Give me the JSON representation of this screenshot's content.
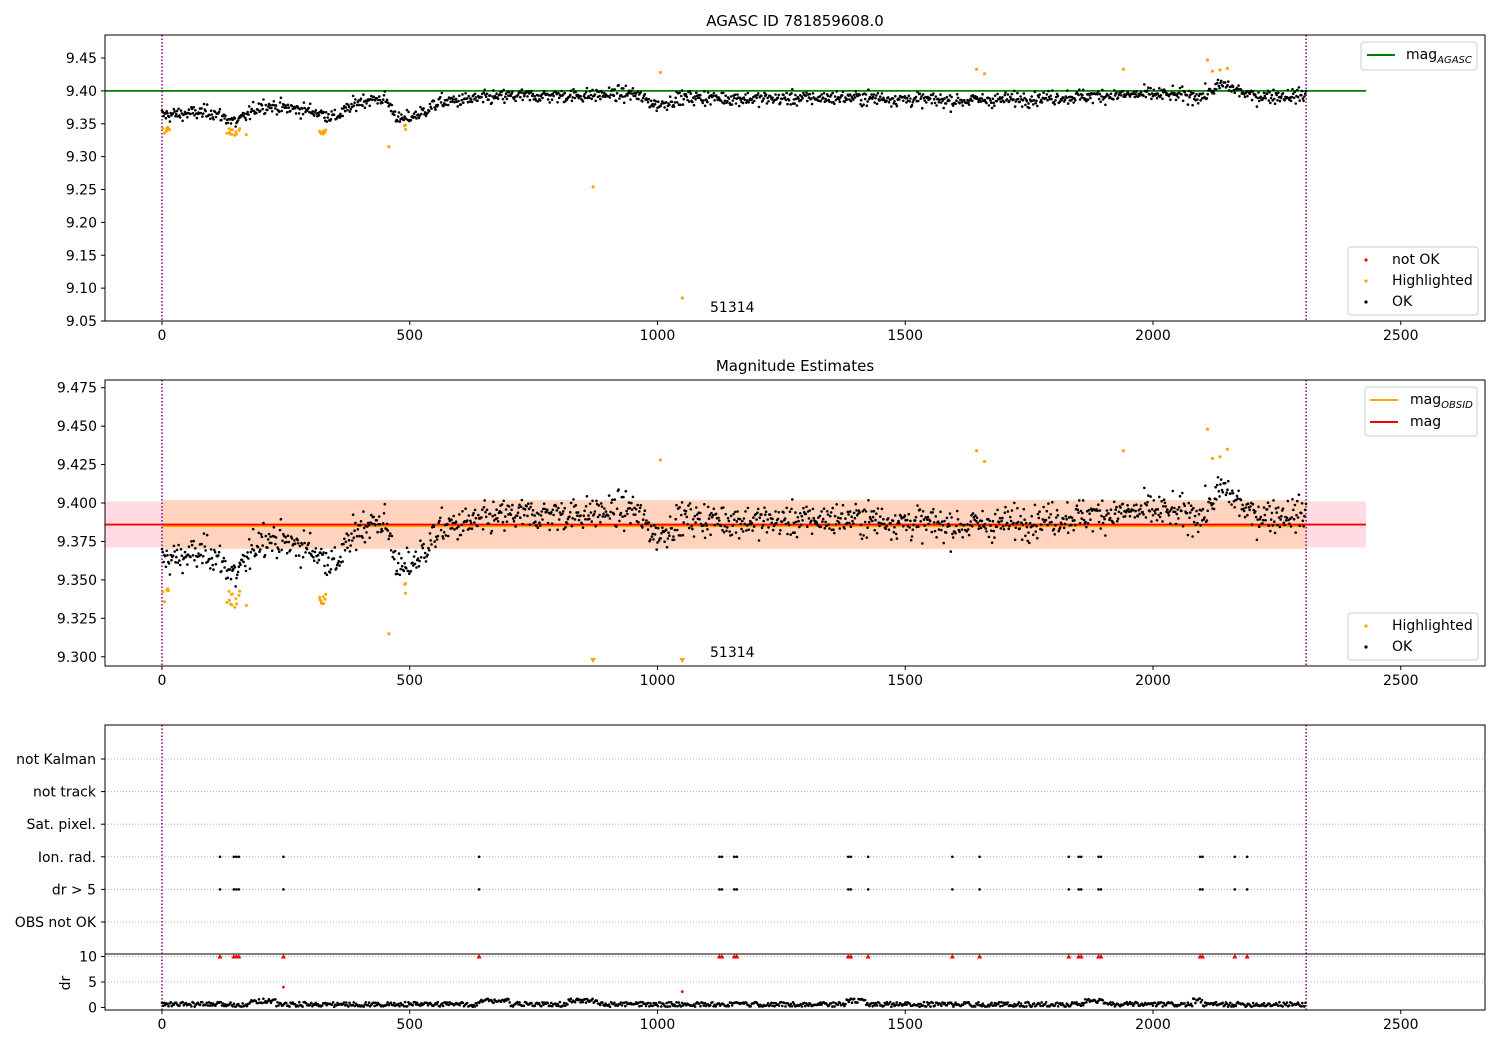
{
  "colors": {
    "ok": "#000000",
    "highlighted": "#ffa500",
    "not_ok": "#ff0000",
    "mag_agasc_line": "#008000",
    "mag_line": "#ff0000",
    "mag_obsid_line": "#ffa500",
    "obs_band_fill": "#ffd0b0",
    "mag_band_fill": "#ffc0cb",
    "obs_boundary": "#800080",
    "grid": "#b0b0b0"
  },
  "chart_data": [
    {
      "type": "scatter",
      "title": "AGASC ID 781859608.0",
      "xlim": [
        -115,
        2670
      ],
      "ylim": [
        9.05,
        9.485
      ],
      "xticks": [
        0,
        500,
        1000,
        1500,
        2000,
        2500
      ],
      "yticks": [
        9.05,
        9.1,
        9.15,
        9.2,
        9.25,
        9.3,
        9.35,
        9.4,
        9.45
      ],
      "obs_boundaries": [
        0,
        2309
      ],
      "obs_label": {
        "text": "51314",
        "x": 1154,
        "y": 9.072
      },
      "mag_agasc": {
        "value": 9.4,
        "x_range": [
          -115,
          2430
        ]
      },
      "legend_lines": [
        {
          "label": "mag",
          "sub": "AGASC"
        }
      ],
      "legend_points": [
        "not OK",
        "Highlighted",
        "OK"
      ],
      "outliers": [
        [
          458,
          9.315
        ],
        [
          870,
          9.254
        ],
        [
          1050,
          9.085
        ],
        [
          1006,
          9.428
        ],
        [
          1644,
          9.433
        ],
        [
          1660,
          9.426
        ],
        [
          1940,
          9.433
        ],
        [
          2110,
          9.447
        ],
        [
          2120,
          9.43
        ],
        [
          2135,
          9.432
        ],
        [
          2150,
          9.434
        ],
        [
          15,
          9.341
        ],
        [
          9,
          9.339
        ]
      ]
    },
    {
      "type": "scatter",
      "title": "Magnitude Estimates",
      "xlim": [
        -115,
        2670
      ],
      "ylim": [
        9.294,
        9.48
      ],
      "xticks": [
        0,
        500,
        1000,
        1500,
        2000,
        2500
      ],
      "yticks": [
        9.3,
        9.325,
        9.35,
        9.375,
        9.4,
        9.425,
        9.45,
        9.475
      ],
      "obs_boundaries": [
        0,
        2309
      ],
      "obs_label": {
        "text": "51314",
        "x": 1154,
        "y": 9.298
      },
      "mag": {
        "value": 9.386,
        "band": [
          9.371,
          9.401
        ],
        "x_range": [
          -115,
          2430
        ]
      },
      "mag_obsid": {
        "value": 9.385,
        "band": [
          9.37,
          9.402
        ],
        "x_range": [
          0,
          2309
        ]
      },
      "legend_lines": [
        {
          "label": "mag",
          "sub": "OBSID"
        },
        {
          "label": "mag",
          "sub": ""
        }
      ],
      "legend_points": [
        "Highlighted",
        "OK"
      ],
      "offscale_markers": [
        870,
        1050
      ],
      "outliers": [
        [
          458,
          9.315
        ],
        [
          1006,
          9.428
        ],
        [
          1644,
          9.434
        ],
        [
          1660,
          9.427
        ],
        [
          1940,
          9.434
        ],
        [
          2110,
          9.448
        ],
        [
          2120,
          9.429
        ],
        [
          2135,
          9.43
        ],
        [
          2150,
          9.435
        ]
      ]
    },
    {
      "type": "scatter",
      "title": "",
      "xlim": [
        -115,
        2670
      ],
      "flag_rows": [
        "not Kalman",
        "not track",
        "Sat. pixel.",
        "Ion. rad.",
        "dr > 5",
        "OBS not OK"
      ],
      "flag_events": {
        "Ion. rad.": [
          117,
          145,
          150,
          155,
          245,
          640,
          1125,
          1130,
          1155,
          1160,
          1385,
          1390,
          1425,
          1595,
          1650,
          1830,
          1850,
          1855,
          1890,
          1895,
          2095,
          2100,
          2165,
          2190
        ],
        "dr > 5": [
          117,
          145,
          150,
          155,
          245,
          640,
          1125,
          1130,
          1155,
          1160,
          1385,
          1390,
          1425,
          1595,
          1650,
          1830,
          1850,
          1855,
          1890,
          1895,
          2095,
          2100,
          2165,
          2190
        ]
      },
      "dr": {
        "ylabel": "dr",
        "ylim": [
          -0.5,
          10.5
        ],
        "yticks": [
          0,
          5,
          10
        ],
        "clipped_marker_value": 10,
        "outliers": [
          [
            245,
            4.0
          ],
          [
            1050,
            3.1
          ]
        ]
      }
    }
  ]
}
